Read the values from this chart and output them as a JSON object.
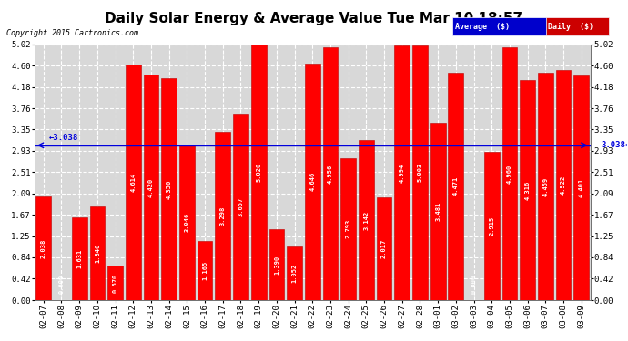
{
  "title": "Daily Solar Energy & Average Value Tue Mar 10 18:57",
  "copyright": "Copyright 2015 Cartronics.com",
  "average_value": 3.038,
  "categories": [
    "02-07",
    "02-08",
    "02-09",
    "02-10",
    "02-11",
    "02-12",
    "02-13",
    "02-14",
    "02-15",
    "02-16",
    "02-17",
    "02-18",
    "02-19",
    "02-20",
    "02-21",
    "02-22",
    "02-23",
    "02-24",
    "02-25",
    "02-26",
    "02-27",
    "02-28",
    "03-01",
    "03-02",
    "03-03",
    "03-04",
    "03-05",
    "03-06",
    "03-07",
    "03-08",
    "03-09"
  ],
  "values": [
    2.038,
    0.0,
    1.631,
    1.846,
    0.67,
    4.614,
    4.42,
    4.356,
    3.046,
    1.165,
    3.298,
    3.657,
    5.02,
    1.39,
    1.052,
    4.646,
    4.956,
    2.793,
    3.142,
    2.017,
    4.994,
    5.003,
    3.481,
    4.471,
    0.0,
    2.915,
    4.96,
    4.316,
    4.459,
    4.522,
    4.401
  ],
  "bar_color": "#ff0000",
  "bar_edge_color": "#bb0000",
  "average_line_color": "#0000dd",
  "ylim": [
    0.0,
    5.02
  ],
  "yticks": [
    0.0,
    0.42,
    0.84,
    1.25,
    1.67,
    2.09,
    2.51,
    2.93,
    3.35,
    3.76,
    4.18,
    4.6,
    5.02
  ],
  "background_color": "#ffffff",
  "plot_bg_color": "#d8d8d8",
  "grid_color": "#ffffff",
  "legend_avg_bg": "#0000cc",
  "legend_daily_color": "#ff0000",
  "title_fontsize": 11,
  "tick_fontsize": 6.5,
  "value_fontsize": 5.0,
  "avg_label_left": "→3.038",
  "avg_label_right": "3.038←"
}
